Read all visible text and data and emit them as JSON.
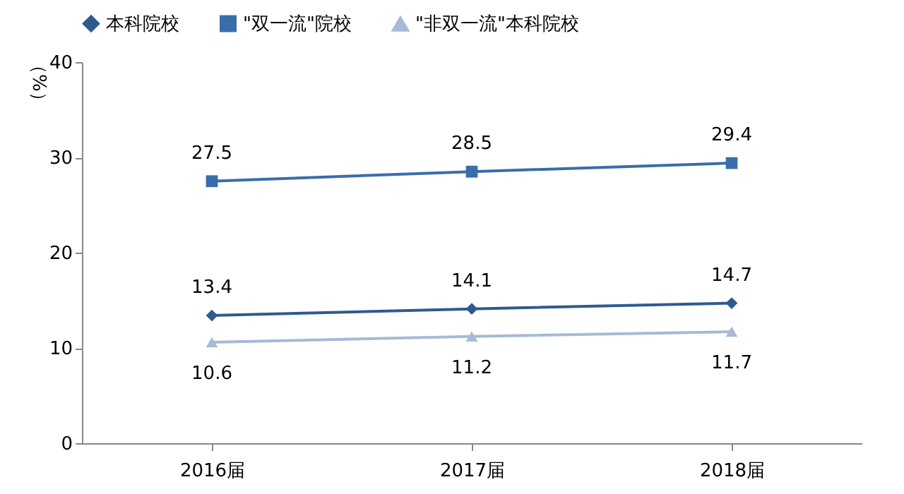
{
  "chart_data": {
    "type": "line",
    "ylabel": "（%）",
    "categories": [
      "2016届",
      "2017届",
      "2018届"
    ],
    "series": [
      {
        "name": "本科院校",
        "color": "#2e5b8f",
        "marker": "diamond",
        "values": [
          13.4,
          14.1,
          14.7
        ]
      },
      {
        "name": "\"双一流\"院校",
        "color": "#3a6daa",
        "marker": "square",
        "values": [
          27.5,
          28.5,
          29.4
        ]
      },
      {
        "name": "\"非双一流\"本科院校",
        "color": "#a7bad6",
        "marker": "triangle",
        "values": [
          10.6,
          11.2,
          11.7
        ]
      }
    ],
    "ylim": [
      0,
      40
    ],
    "yticks": [
      0,
      10,
      20,
      30,
      40
    ],
    "grid": false,
    "legend": "top",
    "data_labels": true
  }
}
